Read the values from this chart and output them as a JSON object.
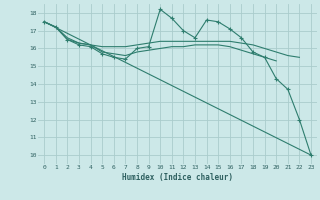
{
  "xlabel": "Humidex (Indice chaleur)",
  "bg_color": "#cce8e8",
  "grid_color": "#aacccc",
  "line_color": "#2e7d6e",
  "xlim": [
    -0.5,
    23.5
  ],
  "ylim": [
    9.5,
    18.5
  ],
  "xticks": [
    0,
    1,
    2,
    3,
    4,
    5,
    6,
    7,
    8,
    9,
    10,
    11,
    12,
    13,
    14,
    15,
    16,
    17,
    18,
    19,
    20,
    21,
    22,
    23
  ],
  "yticks": [
    10,
    11,
    12,
    13,
    14,
    15,
    16,
    17,
    18
  ],
  "series": [
    {
      "x": [
        0,
        1,
        2,
        3,
        4,
        5,
        6,
        7,
        8,
        9,
        10,
        11,
        12,
        13,
        14,
        15,
        16,
        17,
        18,
        19,
        20,
        21,
        22,
        23
      ],
      "y": [
        17.5,
        17.2,
        16.5,
        16.2,
        16.1,
        15.7,
        15.5,
        15.4,
        16.0,
        16.1,
        18.2,
        17.7,
        17.0,
        16.6,
        17.6,
        17.5,
        17.1,
        16.6,
        15.8,
        15.5,
        14.3,
        13.7,
        12.0,
        10.0
      ],
      "marker": true
    },
    {
      "x": [
        0,
        1,
        2,
        3,
        4,
        5,
        6,
        7,
        8,
        9,
        10,
        11,
        12,
        13,
        14,
        15,
        16,
        17,
        18,
        19,
        20,
        21,
        22
      ],
      "y": [
        17.5,
        17.2,
        16.6,
        16.3,
        16.2,
        16.1,
        16.1,
        16.1,
        16.2,
        16.3,
        16.4,
        16.4,
        16.4,
        16.4,
        16.4,
        16.4,
        16.4,
        16.3,
        16.2,
        16.0,
        15.8,
        15.6,
        15.5
      ],
      "marker": false
    },
    {
      "x": [
        0,
        1,
        2,
        3,
        4,
        5,
        6,
        7,
        8,
        9,
        10,
        11,
        12,
        13,
        14,
        15,
        16,
        17,
        18,
        19,
        20
      ],
      "y": [
        17.5,
        17.2,
        16.5,
        16.3,
        16.2,
        15.8,
        15.7,
        15.6,
        15.8,
        15.9,
        16.0,
        16.1,
        16.1,
        16.2,
        16.2,
        16.2,
        16.1,
        15.9,
        15.7,
        15.5,
        15.3
      ],
      "marker": false
    },
    {
      "x": [
        0,
        23
      ],
      "y": [
        17.5,
        10.0
      ],
      "marker": false
    }
  ]
}
